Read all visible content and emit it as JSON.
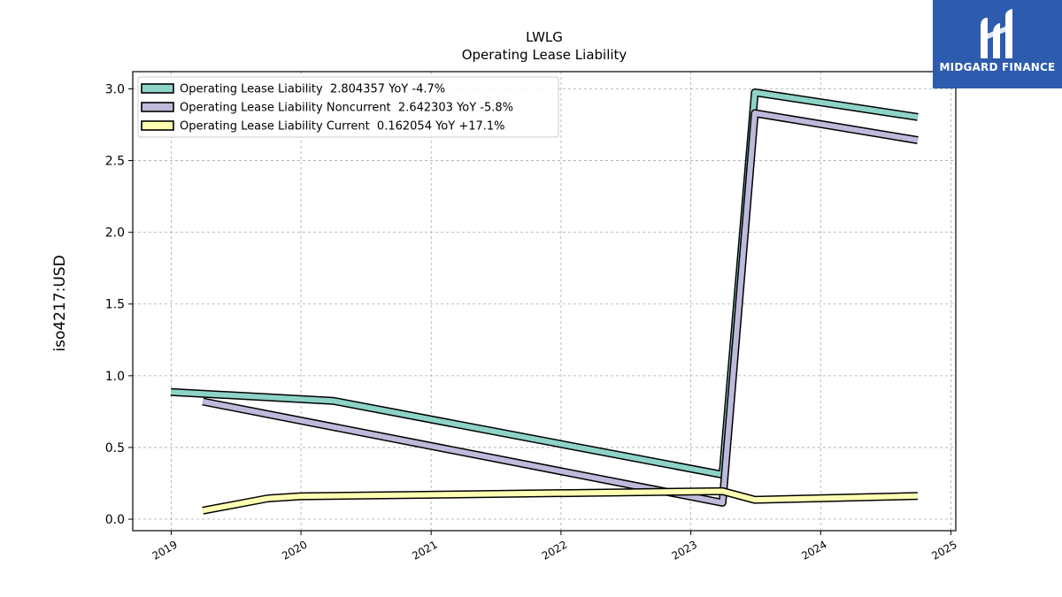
{
  "brand": {
    "name": "MIDGARD FINANCE",
    "logo_color": "#2d5bad",
    "logo_icon": "mf-monogram-icon"
  },
  "chart_data": {
    "type": "line",
    "title": "LWLG",
    "subtitle": "Operating Lease Liability",
    "ylabel": "iso4217:USD",
    "xlabel": "",
    "xlim": [
      "2018-09-15",
      "2025-01-15"
    ],
    "ylim": [
      -0.08,
      3.12
    ],
    "x_ticks": [
      "2019",
      "2020",
      "2021",
      "2022",
      "2023",
      "2024",
      "2025"
    ],
    "y_ticks": [
      "0.0",
      "0.5",
      "1.0",
      "1.5",
      "2.0",
      "2.5",
      "3.0"
    ],
    "grid": true,
    "legend_position": "top-left",
    "series": [
      {
        "name": "Operating Lease Liability  2.804357 YoY -4.7%",
        "color": "#8dd3c7",
        "points": [
          {
            "x": "2018-12-31",
            "y": 0.887
          },
          {
            "x": "2020-03-31",
            "y": 0.825
          },
          {
            "x": "2023-03-31",
            "y": 0.31
          },
          {
            "x": "2023-06-30",
            "y": 2.975
          },
          {
            "x": "2024-09-30",
            "y": 2.804
          }
        ]
      },
      {
        "name": "Operating Lease Liability Noncurrent  2.642303 YoY -5.8%",
        "color": "#bebada",
        "points": [
          {
            "x": "2019-03-31",
            "y": 0.82
          },
          {
            "x": "2023-03-31",
            "y": 0.115
          },
          {
            "x": "2023-06-30",
            "y": 2.83
          },
          {
            "x": "2024-09-30",
            "y": 2.642
          }
        ]
      },
      {
        "name": "Operating Lease Liability Current  0.162054 YoY +17.1%",
        "color": "#ffffb3",
        "points": [
          {
            "x": "2019-03-31",
            "y": 0.06
          },
          {
            "x": "2019-09-30",
            "y": 0.145
          },
          {
            "x": "2019-12-31",
            "y": 0.16
          },
          {
            "x": "2023-03-31",
            "y": 0.195
          },
          {
            "x": "2023-06-30",
            "y": 0.135
          },
          {
            "x": "2024-09-30",
            "y": 0.162
          }
        ]
      }
    ]
  }
}
